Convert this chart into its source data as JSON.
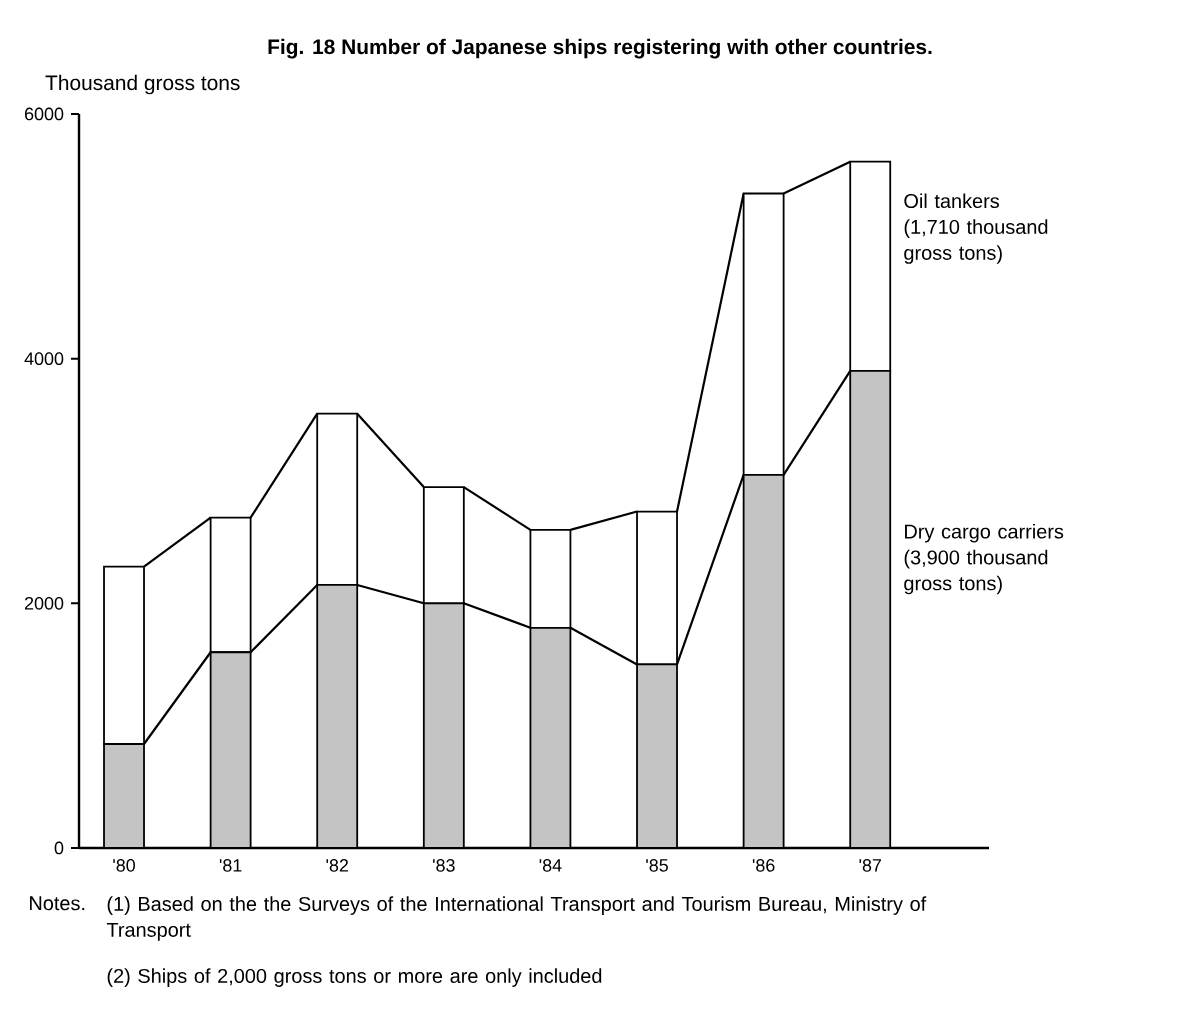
{
  "chart_data": {
    "type": "bar",
    "stacked": true,
    "title": "Fig. 18 Number of Japanese ships registering with other countries.",
    "ylabel": "Thousand gross tons",
    "categories": [
      "'80",
      "'81",
      "'82",
      "'83",
      "'84",
      "'85",
      "'86",
      "'87"
    ],
    "series": [
      {
        "name": "Dry cargo carriers",
        "color": "#c4c4c4",
        "values": [
          850,
          1600,
          2150,
          2000,
          1800,
          1500,
          3050,
          3900
        ]
      },
      {
        "name": "Oil tankers",
        "color": "#ffffff",
        "values": [
          1450,
          1100,
          1400,
          950,
          800,
          1250,
          2300,
          1710
        ]
      }
    ],
    "ylim": [
      0,
      6000
    ],
    "yticks": [
      0,
      2000,
      4000,
      6000
    ],
    "grid": false,
    "legend": "right",
    "annotations": [
      "(3,900 thousand gross tons)",
      "(1,710 thousand gross tons)",
      "Notes.",
      "(1) Based on the the Surveys of the International Transport and Tourism Bureau, Ministry of Transport",
      "(2) Ships of 2,000 gross tons or more are only included"
    ]
  }
}
